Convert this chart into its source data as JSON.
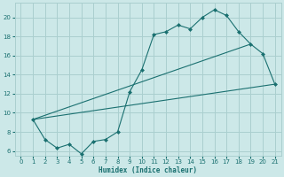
{
  "xlabel": "Humidex (Indice chaleur)",
  "ylabel": "",
  "bg_color": "#cce8e8",
  "grid_color": "#aacfcf",
  "line_color": "#1a7070",
  "xlim": [
    -0.5,
    21.5
  ],
  "ylim": [
    5.5,
    21.5
  ],
  "xticks": [
    0,
    1,
    2,
    3,
    4,
    5,
    6,
    7,
    8,
    9,
    10,
    11,
    12,
    13,
    14,
    15,
    16,
    17,
    18,
    19,
    20,
    21
  ],
  "yticks": [
    6,
    8,
    10,
    12,
    14,
    16,
    18,
    20
  ],
  "line1_x": [
    1,
    2,
    3,
    4,
    5,
    6,
    7,
    8,
    9,
    10,
    11,
    12,
    13,
    14,
    15,
    16,
    17,
    18,
    19,
    20,
    21
  ],
  "line1_y": [
    9.3,
    7.2,
    6.3,
    6.7,
    5.7,
    7.0,
    7.2,
    8.0,
    12.2,
    14.5,
    18.2,
    18.5,
    19.2,
    18.8,
    20.0,
    20.8,
    20.2,
    18.5,
    17.2,
    16.2,
    13.0
  ],
  "line2_x": [
    1,
    19
  ],
  "line2_y": [
    9.3,
    17.2
  ],
  "line3_x": [
    1,
    21
  ],
  "line3_y": [
    9.3,
    13.0
  ],
  "marker_style": "D",
  "marker_size": 2.5
}
